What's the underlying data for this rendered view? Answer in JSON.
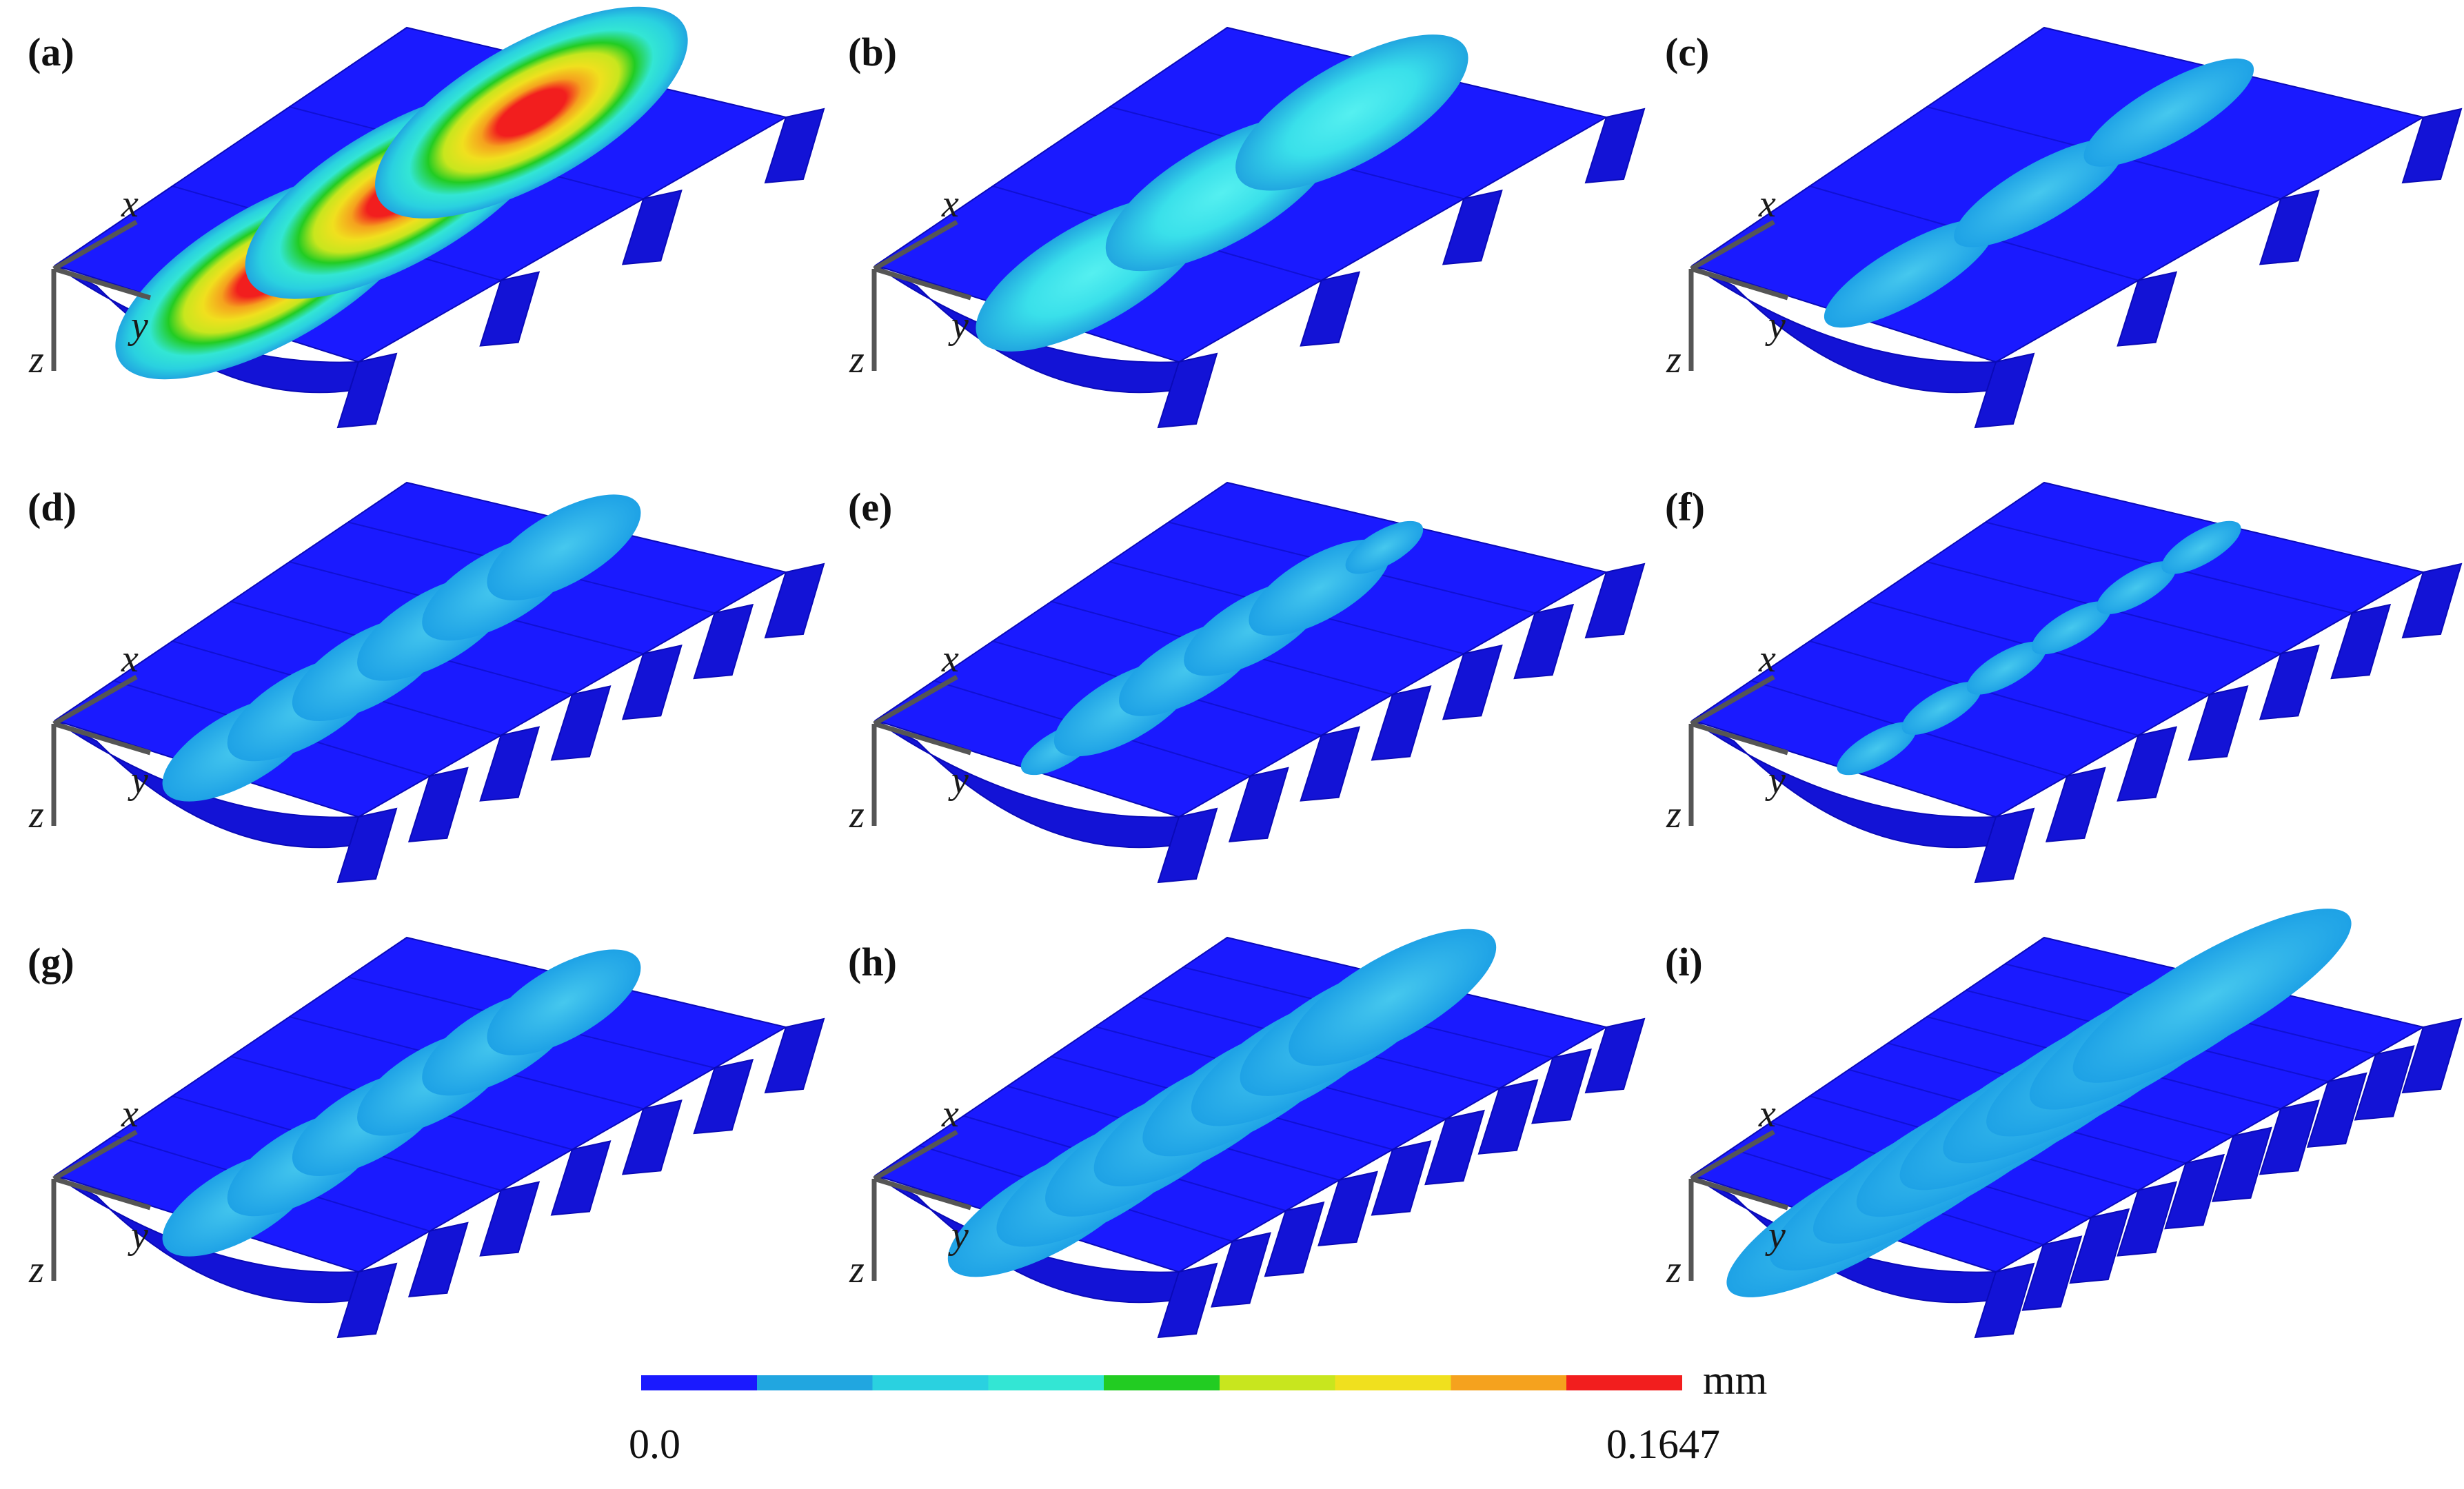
{
  "panels": [
    {
      "id": "a",
      "label": "(a)",
      "spans": 3,
      "bulge_level": 1.0,
      "style": "contour",
      "extra_blob": []
    },
    {
      "id": "b",
      "label": "(b)",
      "spans": 3,
      "bulge_level": 0.35,
      "style": "cyan",
      "extra_blob": []
    },
    {
      "id": "c",
      "label": "(c)",
      "spans": 3,
      "bulge_level": 0.25,
      "style": "small",
      "extra_blob": []
    },
    {
      "id": "d",
      "label": "(d)",
      "spans": 6,
      "bulge_level": 0.25,
      "style": "chain",
      "extra_blob": []
    },
    {
      "id": "e",
      "label": "(e)",
      "spans": 6,
      "bulge_level": 0.22,
      "style": "chain-ends",
      "extra_blob": []
    },
    {
      "id": "f",
      "label": "(f)",
      "spans": 6,
      "bulge_level": 0.2,
      "style": "dots",
      "extra_blob": []
    },
    {
      "id": "g",
      "label": "(g)",
      "spans": 6,
      "bulge_level": 0.25,
      "style": "chain",
      "extra_blob": []
    },
    {
      "id": "h",
      "label": "(h)",
      "spans": 8,
      "bulge_level": 0.28,
      "style": "wide",
      "extra_blob": []
    },
    {
      "id": "i",
      "label": "(i)",
      "spans": 9,
      "bulge_level": 0.3,
      "style": "wider",
      "extra_blob": []
    }
  ],
  "axes": {
    "x": "x",
    "y": "y",
    "z": "z"
  },
  "colorbar": {
    "unit": "mm",
    "min_label": "0.0",
    "max_label": "0.1647",
    "min": 0.0,
    "max": 0.1647,
    "colors": [
      "#1a1aff",
      "#21a6e0",
      "#2ad1e0",
      "#33e6d4",
      "#22cc22",
      "#c8e61e",
      "#f0e01e",
      "#f5a21e",
      "#f21e1e"
    ],
    "stops": [
      0.0,
      0.11,
      0.22,
      0.44,
      0.55,
      0.66,
      0.77,
      0.88,
      1.0
    ]
  },
  "colors": {
    "plate": "#1a1aff",
    "plate_dark": "#0a0ab8",
    "plate_side": "#1313d6",
    "axis": "#555555"
  }
}
